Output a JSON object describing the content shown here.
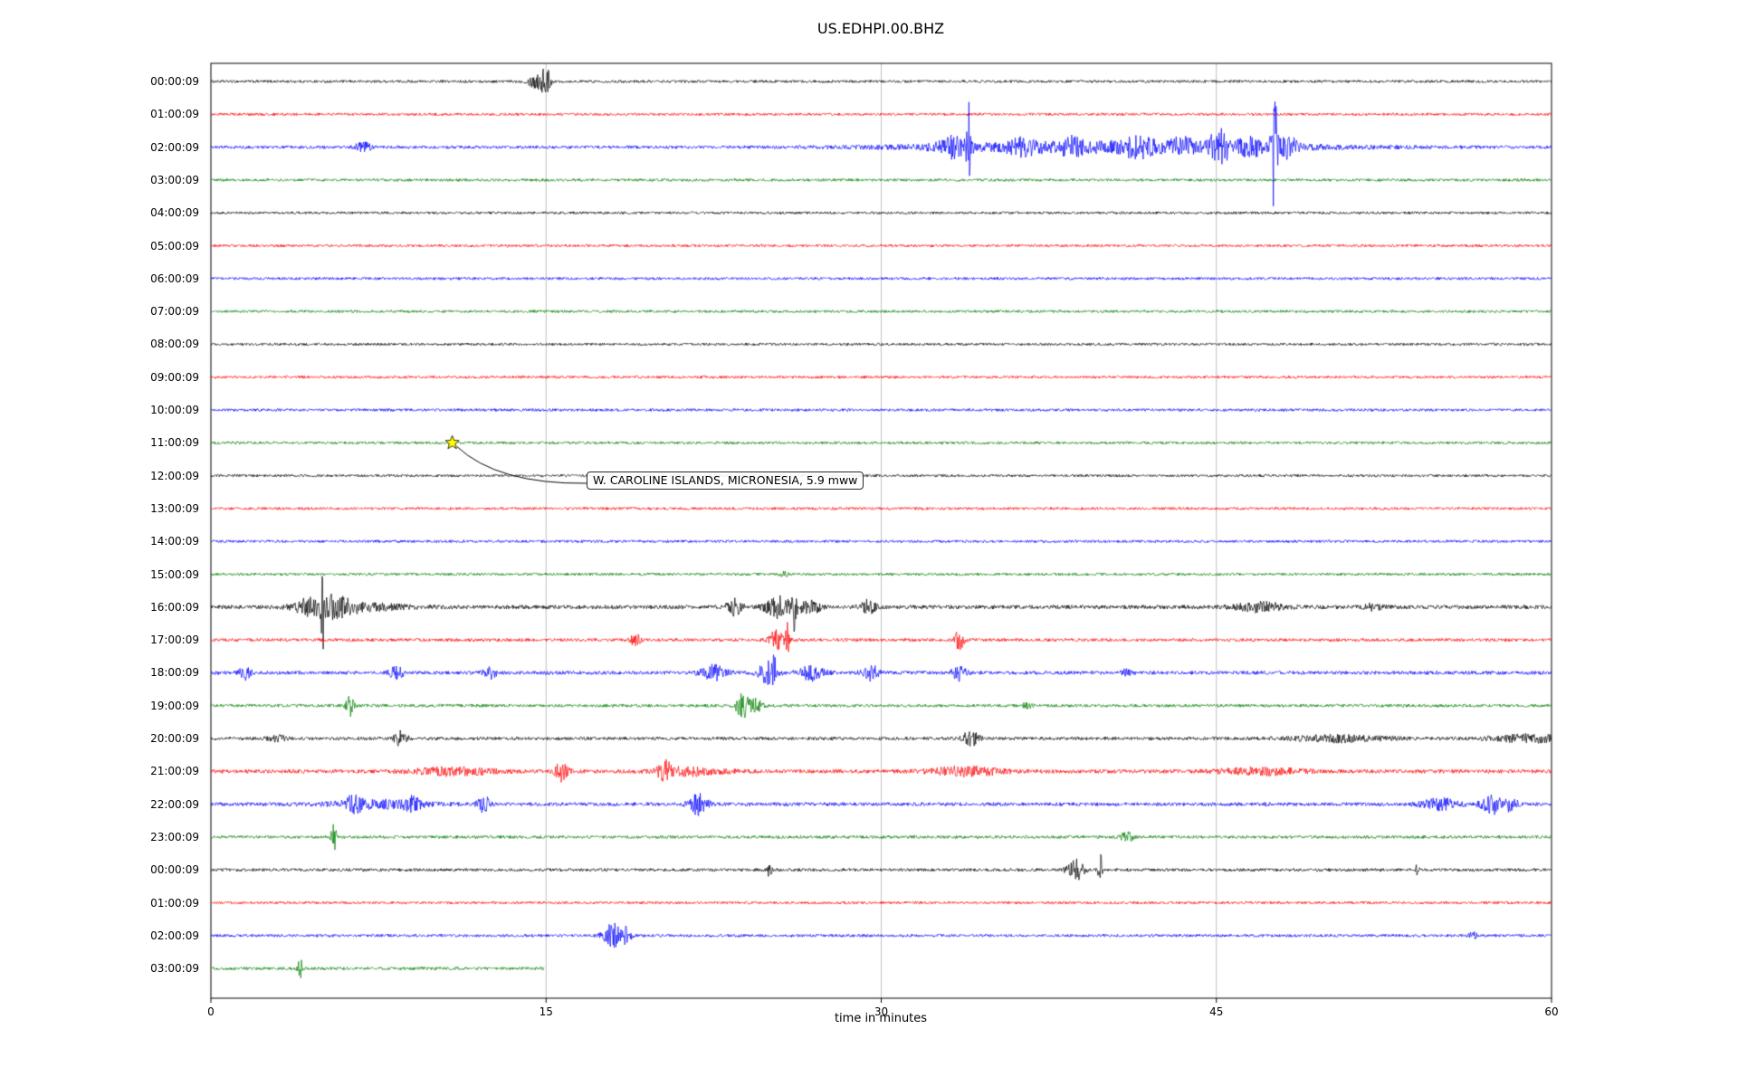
{
  "chart_data": {
    "type": "line",
    "subtype": "seismogram-dayplot",
    "title": "US.EDHPI.00.BHZ",
    "xlabel": "time in minutes",
    "xlim": [
      0,
      60
    ],
    "xticks": [
      0,
      15,
      30,
      45,
      60
    ],
    "gridlines_x": [
      15,
      30,
      45
    ],
    "grid": true,
    "legend": "none",
    "trace_color_cycle": [
      "#000000",
      "#ff0000",
      "#0000ff",
      "#008000"
    ],
    "annotation": {
      "text": "W. CAROLINE ISLANDS, MICRONESIA, 5.9 mww",
      "row_index": 11,
      "x_min": 10.8,
      "marker": "star",
      "marker_color": "#ffff00"
    },
    "rows": [
      {
        "label": "00:00:09",
        "color": "#000000",
        "noise": 1.5,
        "end_min": 60,
        "events": [
          [
            14.6,
            0.5,
            9
          ],
          [
            15.0,
            0.25,
            16
          ]
        ]
      },
      {
        "label": "01:00:09",
        "color": "#ff0000",
        "noise": 1.5,
        "end_min": 60,
        "events": []
      },
      {
        "label": "02:00:09",
        "color": "#0000ff",
        "noise": 1.7,
        "end_min": 60,
        "events": [
          [
            6.8,
            0.5,
            5
          ],
          [
            33.2,
            1.0,
            10
          ],
          [
            33.9,
            0.1,
            55
          ],
          [
            40.5,
            12,
            6
          ],
          [
            36.2,
            0.8,
            8
          ],
          [
            38.5,
            0.6,
            7
          ],
          [
            41.5,
            0.8,
            8
          ],
          [
            43.5,
            0.7,
            7
          ],
          [
            45.3,
            0.3,
            20
          ],
          [
            46.5,
            0.8,
            9
          ],
          [
            47.6,
            0.18,
            80
          ],
          [
            48.2,
            0.6,
            10
          ],
          [
            44.8,
            0.3,
            12
          ]
        ]
      },
      {
        "label": "03:00:09",
        "color": "#008000",
        "noise": 1.5,
        "end_min": 60,
        "events": []
      },
      {
        "label": "04:00:09",
        "color": "#000000",
        "noise": 1.4,
        "end_min": 60,
        "events": []
      },
      {
        "label": "05:00:09",
        "color": "#ff0000",
        "noise": 1.5,
        "end_min": 60,
        "events": []
      },
      {
        "label": "06:00:09",
        "color": "#0000ff",
        "noise": 1.5,
        "end_min": 60,
        "events": []
      },
      {
        "label": "07:00:09",
        "color": "#008000",
        "noise": 1.5,
        "end_min": 60,
        "events": []
      },
      {
        "label": "08:00:09",
        "color": "#000000",
        "noise": 1.4,
        "end_min": 60,
        "events": []
      },
      {
        "label": "09:00:09",
        "color": "#ff0000",
        "noise": 1.5,
        "end_min": 60,
        "events": []
      },
      {
        "label": "10:00:09",
        "color": "#0000ff",
        "noise": 1.5,
        "end_min": 60,
        "events": []
      },
      {
        "label": "11:00:09",
        "color": "#008000",
        "noise": 1.5,
        "end_min": 60,
        "events": []
      },
      {
        "label": "12:00:09",
        "color": "#000000",
        "noise": 1.4,
        "end_min": 60,
        "events": []
      },
      {
        "label": "13:00:09",
        "color": "#ff0000",
        "noise": 1.5,
        "end_min": 60,
        "events": []
      },
      {
        "label": "14:00:09",
        "color": "#0000ff",
        "noise": 1.5,
        "end_min": 60,
        "events": []
      },
      {
        "label": "15:00:09",
        "color": "#008000",
        "noise": 1.5,
        "end_min": 60,
        "events": [
          [
            25.7,
            0.3,
            3
          ]
        ]
      },
      {
        "label": "16:00:09",
        "color": "#000000",
        "noise": 2.2,
        "end_min": 60,
        "events": [
          [
            4.3,
            0.8,
            8
          ],
          [
            5.0,
            0.12,
            42
          ],
          [
            5.6,
            1.0,
            10
          ],
          [
            6.5,
            3,
            4
          ],
          [
            23.4,
            0.5,
            9
          ],
          [
            25.4,
            0.8,
            12
          ],
          [
            26.1,
            0.15,
            26
          ],
          [
            26.8,
            0.6,
            9
          ],
          [
            29.4,
            0.5,
            7
          ],
          [
            47.0,
            1.5,
            5
          ],
          [
            52.0,
            0.6,
            3
          ]
        ]
      },
      {
        "label": "17:00:09",
        "color": "#ff0000",
        "noise": 1.8,
        "end_min": 60,
        "events": [
          [
            19.0,
            0.3,
            7
          ],
          [
            25.3,
            0.5,
            10
          ],
          [
            25.8,
            0.12,
            18
          ],
          [
            33.5,
            0.3,
            11
          ]
        ]
      },
      {
        "label": "18:00:09",
        "color": "#0000ff",
        "noise": 2.0,
        "end_min": 60,
        "events": [
          [
            1.5,
            0.4,
            7
          ],
          [
            8.3,
            0.4,
            8
          ],
          [
            12.5,
            0.4,
            6
          ],
          [
            22.5,
            0.8,
            8
          ],
          [
            24.9,
            0.6,
            12
          ],
          [
            25.2,
            0.12,
            24
          ],
          [
            26.9,
            0.8,
            8
          ],
          [
            29.5,
            0.5,
            9
          ],
          [
            33.5,
            0.4,
            11
          ],
          [
            41.0,
            0.3,
            4
          ]
        ]
      },
      {
        "label": "19:00:09",
        "color": "#008000",
        "noise": 1.7,
        "end_min": 60,
        "events": [
          [
            6.2,
            0.25,
            12
          ],
          [
            23.8,
            0.4,
            14
          ],
          [
            24.4,
            0.4,
            7
          ],
          [
            36.5,
            0.3,
            3
          ]
        ]
      },
      {
        "label": "20:00:09",
        "color": "#000000",
        "noise": 1.8,
        "end_min": 60,
        "events": [
          [
            3.0,
            0.6,
            3
          ],
          [
            8.5,
            0.4,
            8
          ],
          [
            34.0,
            0.5,
            8
          ],
          [
            50.5,
            3,
            3.5
          ],
          [
            59.0,
            2.5,
            4
          ]
        ]
      },
      {
        "label": "21:00:09",
        "color": "#ff0000",
        "noise": 2.2,
        "end_min": 60,
        "events": [
          [
            10.8,
            2.5,
            4
          ],
          [
            15.7,
            0.4,
            10
          ],
          [
            20.3,
            0.4,
            10
          ],
          [
            21.5,
            2,
            4
          ],
          [
            33.8,
            2.2,
            4.5
          ],
          [
            47.0,
            2.5,
            3.5
          ]
        ]
      },
      {
        "label": "22:00:09",
        "color": "#0000ff",
        "noise": 2.0,
        "end_min": 60,
        "events": [
          [
            7.5,
            3,
            4
          ],
          [
            6.4,
            0.5,
            7
          ],
          [
            9.0,
            0.5,
            6
          ],
          [
            12.2,
            0.4,
            9
          ],
          [
            21.8,
            0.6,
            11
          ],
          [
            55.0,
            1.2,
            6
          ],
          [
            57.3,
            0.6,
            11
          ],
          [
            58.2,
            0.4,
            8
          ]
        ]
      },
      {
        "label": "23:00:09",
        "color": "#008000",
        "noise": 1.7,
        "end_min": 60,
        "events": [
          [
            5.5,
            0.15,
            20
          ],
          [
            41.0,
            0.4,
            5
          ]
        ]
      },
      {
        "label": "00:00:09",
        "color": "#000000",
        "noise": 1.7,
        "end_min": 60,
        "events": [
          [
            25.0,
            0.15,
            9
          ],
          [
            38.7,
            0.5,
            12
          ],
          [
            39.8,
            0.12,
            24
          ],
          [
            54.0,
            0.1,
            7
          ]
        ]
      },
      {
        "label": "01:00:09",
        "color": "#ff0000",
        "noise": 1.5,
        "end_min": 60,
        "events": []
      },
      {
        "label": "02:00:09",
        "color": "#0000ff",
        "noise": 1.6,
        "end_min": 60,
        "events": [
          [
            18.0,
            0.6,
            14
          ],
          [
            18.6,
            0.3,
            8
          ],
          [
            56.5,
            0.25,
            4
          ]
        ]
      },
      {
        "label": "03:00:09",
        "color": "#008000",
        "noise": 1.7,
        "end_min": 14.9,
        "events": [
          [
            4.0,
            0.15,
            10
          ]
        ]
      }
    ]
  }
}
